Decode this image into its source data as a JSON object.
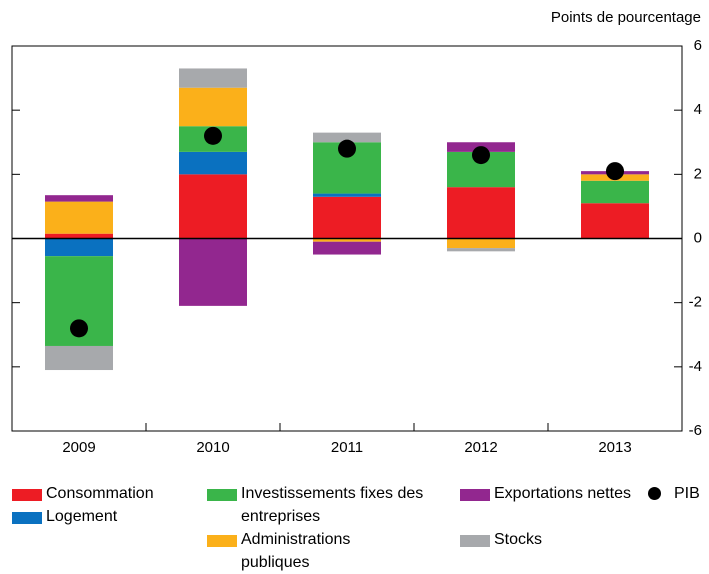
{
  "chart_data": {
    "type": "bar",
    "stacked": true,
    "y_label": "Points de pourcentage",
    "categories": [
      "2009",
      "2010",
      "2011",
      "2012",
      "2013"
    ],
    "series": [
      {
        "name": "Consommation",
        "color": "#ed1c24",
        "values": [
          0.15,
          2.0,
          1.3,
          1.6,
          1.1
        ]
      },
      {
        "name": "Logement",
        "color": "#0a71c0",
        "values": [
          -0.55,
          0.7,
          0.1,
          0,
          0
        ]
      },
      {
        "name": "Investissements fixes des entreprises",
        "color": "#3ab54a",
        "values": [
          -2.8,
          0.8,
          1.6,
          1.1,
          0.7
        ]
      },
      {
        "name": "Administrations publiques",
        "color": "#fbb01a",
        "values": [
          1.0,
          1.2,
          -0.1,
          -0.3,
          0.2
        ]
      },
      {
        "name": "Exportations nettes",
        "color": "#92278f",
        "values": [
          0.2,
          -2.1,
          -0.4,
          0.3,
          0.1
        ]
      },
      {
        "name": "Stocks",
        "color": "#a7a9ac",
        "values": [
          -0.75,
          0.6,
          0.3,
          -0.1,
          0
        ]
      }
    ],
    "markers": {
      "name": "PIB",
      "color": "#000000",
      "values": [
        -2.8,
        3.2,
        2.8,
        2.6,
        2.1
      ]
    },
    "ylim": [
      -6,
      6
    ],
    "yticks": [
      -6,
      -4,
      -2,
      0,
      2,
      4,
      6
    ],
    "y_axis_side": "right"
  }
}
